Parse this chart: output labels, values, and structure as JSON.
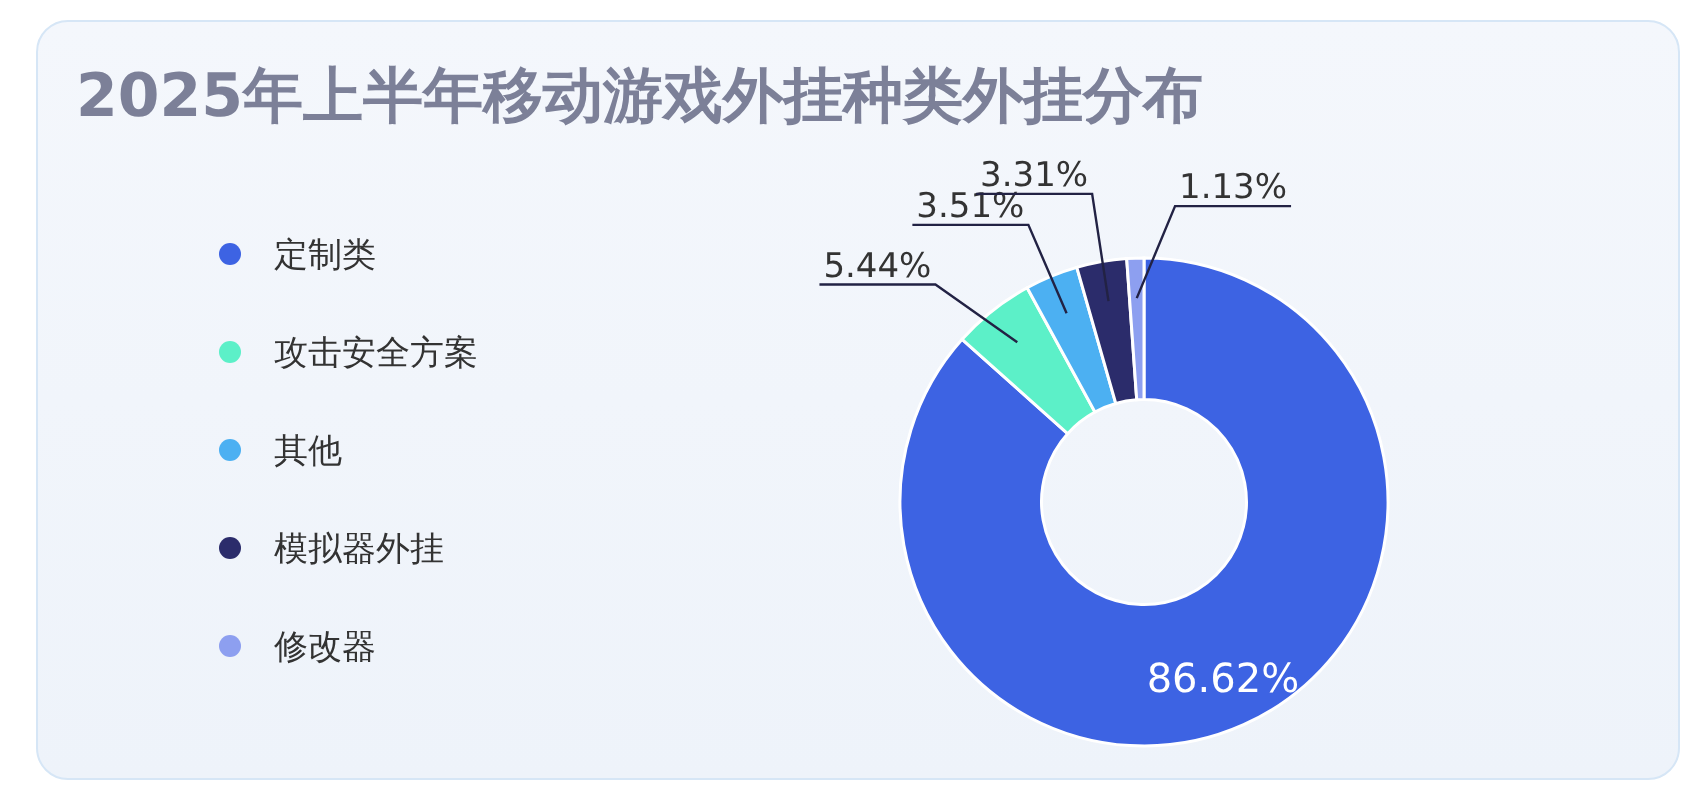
{
  "chart_data": {
    "type": "donut",
    "title": "2025年上半年移动游戏外挂种类外挂分布",
    "categories": [
      "定制类",
      "攻击安全方案",
      "其他",
      "模拟器外挂",
      "修改器"
    ],
    "values": [
      86.62,
      5.44,
      3.51,
      3.31,
      1.13
    ],
    "colors": [
      "#3d63e3",
      "#5cf0c8",
      "#4cb0f2",
      "#2b2c6b",
      "#8d9ff0"
    ],
    "value_labels": [
      "86.62%",
      "5.44%",
      "3.51%",
      "3.31%",
      "1.13%"
    ],
    "legend": "left"
  }
}
